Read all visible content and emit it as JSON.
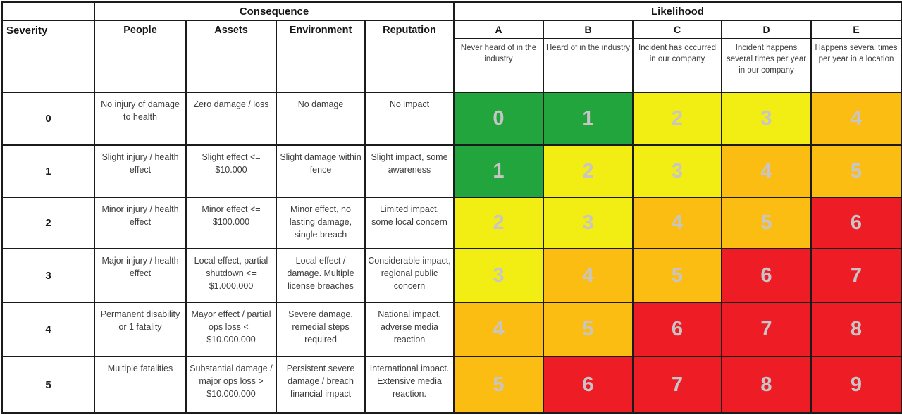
{
  "colors": {
    "green": "#22a53d",
    "yellow": "#f2ee13",
    "orange": "#fcbd13",
    "red": "#ee1c24",
    "number_text": "#c8c5c8",
    "grid_line": "#1b1b1b"
  },
  "header": {
    "consequence": "Consequence",
    "likelihood": "Likelihood",
    "severity": "Severity",
    "consequence_columns": [
      "People",
      "Assets",
      "Environment",
      "Reputation"
    ],
    "likelihood_columns": [
      {
        "letter": "A",
        "description": "Never heard of in the industry"
      },
      {
        "letter": "B",
        "description": "Heard of in the industry"
      },
      {
        "letter": "C",
        "description": "Incident has occurred in our company"
      },
      {
        "letter": "D",
        "description": "Incident happens several times per year in our company"
      },
      {
        "letter": "E",
        "description": "Happens several times per year in a location"
      }
    ]
  },
  "rows": [
    {
      "severity": "0",
      "people": "No injury of damage to health",
      "assets": "Zero damage / loss",
      "environment": "No damage",
      "reputation": "No impact",
      "cells": [
        {
          "value": "0",
          "level": "green"
        },
        {
          "value": "1",
          "level": "green"
        },
        {
          "value": "2",
          "level": "yellow"
        },
        {
          "value": "3",
          "level": "yellow"
        },
        {
          "value": "4",
          "level": "orange"
        }
      ]
    },
    {
      "severity": "1",
      "people": "Slight injury / health effect",
      "assets": "Slight effect <= $10.000",
      "environment": "Slight damage within fence",
      "reputation": "Slight impact, some awareness",
      "cells": [
        {
          "value": "1",
          "level": "green"
        },
        {
          "value": "2",
          "level": "yellow"
        },
        {
          "value": "3",
          "level": "yellow"
        },
        {
          "value": "4",
          "level": "orange"
        },
        {
          "value": "5",
          "level": "orange"
        }
      ]
    },
    {
      "severity": "2",
      "people": "Minor injury / health effect",
      "assets": "Minor effect <= $100.000",
      "environment": "Minor effect, no lasting damage, single breach",
      "reputation": "Limited impact, some local concern",
      "cells": [
        {
          "value": "2",
          "level": "yellow"
        },
        {
          "value": "3",
          "level": "yellow"
        },
        {
          "value": "4",
          "level": "orange"
        },
        {
          "value": "5",
          "level": "orange"
        },
        {
          "value": "6",
          "level": "red"
        }
      ]
    },
    {
      "severity": "3",
      "people": "Major injury / health effect",
      "assets": "Local effect, partial shutdown <= $1.000.000",
      "environment": "Local effect / damage. Multiple license breaches",
      "reputation": "Considerable impact, regional public concern",
      "cells": [
        {
          "value": "3",
          "level": "yellow"
        },
        {
          "value": "4",
          "level": "orange"
        },
        {
          "value": "5",
          "level": "orange"
        },
        {
          "value": "6",
          "level": "red"
        },
        {
          "value": "7",
          "level": "red"
        }
      ]
    },
    {
      "severity": "4",
      "people": "Permanent disability or 1 fatality",
      "assets": "Mayor effect / partial ops loss <= $10.000.000",
      "environment": "Severe damage, remedial steps required",
      "reputation": "National impact, adverse media reaction",
      "cells": [
        {
          "value": "4",
          "level": "orange"
        },
        {
          "value": "5",
          "level": "orange"
        },
        {
          "value": "6",
          "level": "red"
        },
        {
          "value": "7",
          "level": "red"
        },
        {
          "value": "8",
          "level": "red"
        }
      ]
    },
    {
      "severity": "5",
      "people": "Multiple fatalities",
      "assets": "Substantial damage / major ops loss > $10.000.000",
      "environment": "Persistent severe damage / breach financial impact",
      "reputation": "International impact. Extensive media reaction.",
      "cells": [
        {
          "value": "5",
          "level": "orange"
        },
        {
          "value": "6",
          "level": "red"
        },
        {
          "value": "7",
          "level": "red"
        },
        {
          "value": "8",
          "level": "red"
        },
        {
          "value": "9",
          "level": "red"
        }
      ]
    }
  ],
  "chart_data": {
    "type": "heatmap",
    "title": "",
    "xlabel": "Likelihood",
    "ylabel": "Severity",
    "x": [
      "A",
      "B",
      "C",
      "D",
      "E"
    ],
    "x_descriptions": [
      "Never heard of in the industry",
      "Heard of in the industry",
      "Incident has occurred in our company",
      "Incident happens several times per year in our company",
      "Happens several times per year in a location"
    ],
    "y": [
      "0",
      "1",
      "2",
      "3",
      "4",
      "5"
    ],
    "values": [
      [
        0,
        1,
        2,
        3,
        4
      ],
      [
        1,
        2,
        3,
        4,
        5
      ],
      [
        2,
        3,
        4,
        5,
        6
      ],
      [
        3,
        4,
        5,
        6,
        7
      ],
      [
        4,
        5,
        6,
        7,
        8
      ],
      [
        5,
        6,
        7,
        8,
        9
      ]
    ],
    "cell_levels": [
      [
        "green",
        "green",
        "yellow",
        "yellow",
        "orange"
      ],
      [
        "green",
        "yellow",
        "yellow",
        "orange",
        "orange"
      ],
      [
        "yellow",
        "yellow",
        "orange",
        "orange",
        "red"
      ],
      [
        "yellow",
        "orange",
        "orange",
        "red",
        "red"
      ],
      [
        "orange",
        "orange",
        "red",
        "red",
        "red"
      ],
      [
        "orange",
        "red",
        "red",
        "red",
        "red"
      ]
    ],
    "legend_position": "none",
    "grid": true
  }
}
